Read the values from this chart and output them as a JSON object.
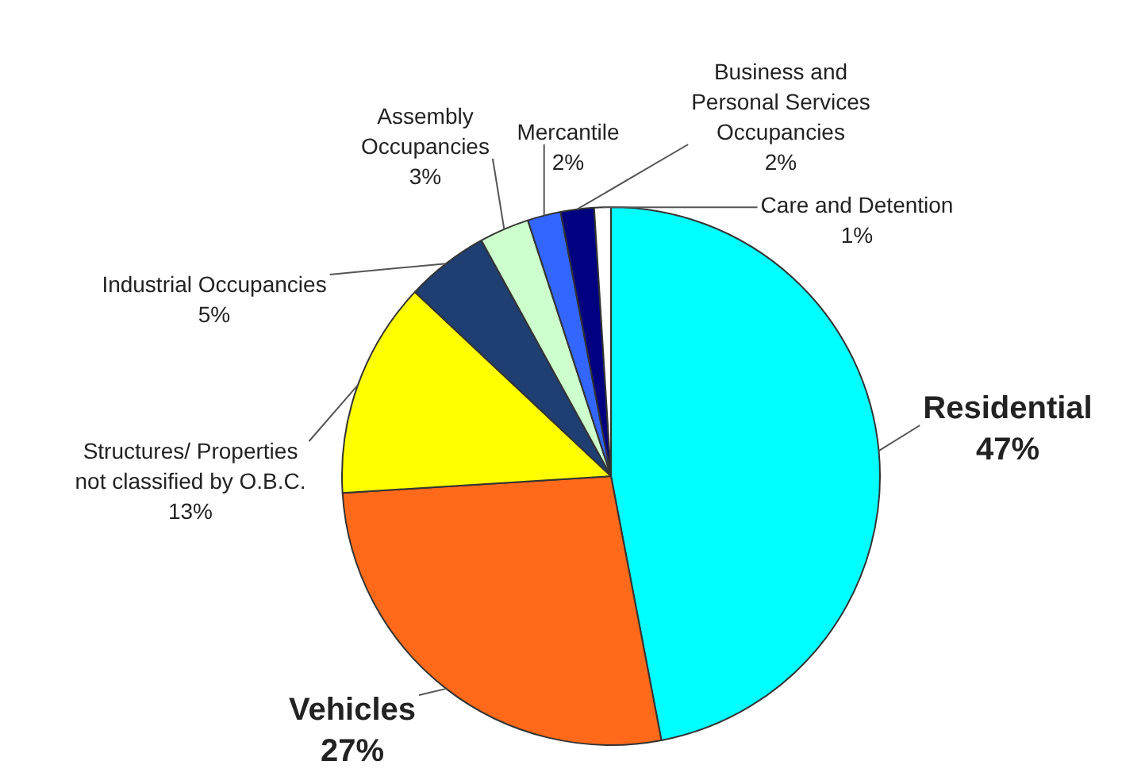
{
  "chart_data": {
    "type": "pie",
    "categories": [
      "Residential",
      "Vehicles",
      "Structures/ Properties not classified by O.B.C.",
      "Industrial Occupancies",
      "Assembly Occupancies",
      "Mercantile",
      "Business and Personal Services Occupancies",
      "Care and Detention"
    ],
    "values": [
      47,
      27,
      13,
      5,
      3,
      2,
      2,
      1
    ],
    "value_labels": [
      "47%",
      "27%",
      "13%",
      "5%",
      "3%",
      "2%",
      "2%",
      "1%"
    ],
    "colors": [
      "#00ffff",
      "#ff6a1a",
      "#ffff00",
      "#1f3f73",
      "#ccffcc",
      "#3366ff",
      "#000080",
      "#ffffff"
    ],
    "legend": false
  }
}
